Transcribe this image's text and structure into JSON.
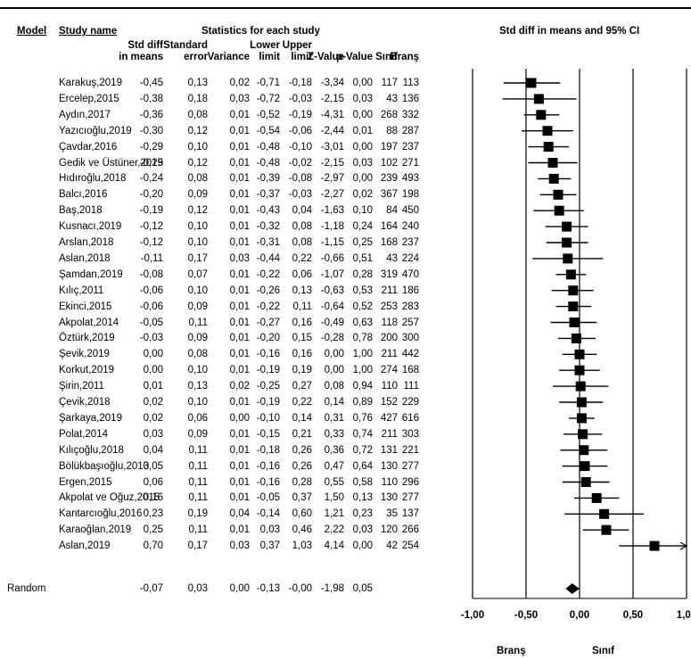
{
  "header": {
    "model": "Model",
    "study_name": "Study name",
    "stats_title": "Statistics for each study",
    "plot_title": "Std diff in means and 95% CI",
    "columns": [
      [
        "Std diff",
        "in means"
      ],
      [
        "Standard",
        "error"
      ],
      [
        "",
        "Variance"
      ],
      [
        "Lower",
        "limit"
      ],
      [
        "Upper",
        "limit"
      ],
      [
        "",
        "Z-Value"
      ],
      [
        "",
        "p-Value"
      ],
      [
        "",
        "Sınıf"
      ],
      [
        "",
        "Branş"
      ]
    ]
  },
  "rows": [
    [
      "Karakuş,2019",
      "-0,45",
      "0,13",
      "0,02",
      "-0,71",
      "-0,18",
      "-3,34",
      "0,00",
      "117",
      "113"
    ],
    [
      "Ercelep,2015",
      "-0,38",
      "0,18",
      "0,03",
      "-0,72",
      "-0,03",
      "-2,15",
      "0,03",
      "43",
      "136"
    ],
    [
      "Aydın,2017",
      "-0,36",
      "0,08",
      "0,01",
      "-0,52",
      "-0,19",
      "-4,31",
      "0,00",
      "268",
      "332"
    ],
    [
      "Yazıcıoğlu,2019",
      "-0,30",
      "0,12",
      "0,01",
      "-0,54",
      "-0,06",
      "-2,44",
      "0,01",
      "88",
      "287"
    ],
    [
      "Çavdar,2016",
      "-0,29",
      "0,10",
      "0,01",
      "-0,48",
      "-0,10",
      "-3,01",
      "0,00",
      "197",
      "237"
    ],
    [
      "Gedik ve Üstüner,2019",
      "-0,25",
      "0,12",
      "0,01",
      "-0,48",
      "-0,02",
      "-2,15",
      "0,03",
      "102",
      "271"
    ],
    [
      "Hıdıroğlu,2018",
      "-0,24",
      "0,08",
      "0,01",
      "-0,39",
      "-0,08",
      "-2,97",
      "0,00",
      "239",
      "493"
    ],
    [
      "Balcı,2016",
      "-0,20",
      "0,09",
      "0,01",
      "-0,37",
      "-0,03",
      "-2,27",
      "0,02",
      "367",
      "198"
    ],
    [
      "Baş,2018",
      "-0,19",
      "0,12",
      "0,01",
      "-0,43",
      "0,04",
      "-1,63",
      "0,10",
      "84",
      "450"
    ],
    [
      "Kusnacı,2019",
      "-0,12",
      "0,10",
      "0,01",
      "-0,32",
      "0,08",
      "-1,18",
      "0,24",
      "164",
      "240"
    ],
    [
      "Arslan,2018",
      "-0,12",
      "0,10",
      "0,01",
      "-0,31",
      "0,08",
      "-1,15",
      "0,25",
      "168",
      "237"
    ],
    [
      "Aslan,2018",
      "-0,11",
      "0,17",
      "0,03",
      "-0,44",
      "0,22",
      "-0,66",
      "0,51",
      "43",
      "224"
    ],
    [
      "Şamdan,2019",
      "-0,08",
      "0,07",
      "0,01",
      "-0,22",
      "0,06",
      "-1,07",
      "0,28",
      "319",
      "470"
    ],
    [
      "Kılıç,2011",
      "-0,06",
      "0,10",
      "0,01",
      "-0,26",
      "0,13",
      "-0,63",
      "0,53",
      "211",
      "186"
    ],
    [
      "Ekinci,2015",
      "-0,06",
      "0,09",
      "0,01",
      "-0,22",
      "0,11",
      "-0,64",
      "0,52",
      "253",
      "283"
    ],
    [
      "Akpolat,2014",
      "-0,05",
      "0,11",
      "0,01",
      "-0,27",
      "0,16",
      "-0,49",
      "0,63",
      "118",
      "257"
    ],
    [
      "Öztürk,2019",
      "-0,03",
      "0,09",
      "0,01",
      "-0,20",
      "0,15",
      "-0,28",
      "0,78",
      "200",
      "300"
    ],
    [
      "Şevik,2019",
      "0,00",
      "0,08",
      "0,01",
      "-0,16",
      "0,16",
      "0,00",
      "1,00",
      "211",
      "442"
    ],
    [
      "Korkut,2019",
      "0,00",
      "0,10",
      "0,01",
      "-0,19",
      "0,19",
      "0,00",
      "1,00",
      "274",
      "168"
    ],
    [
      "Şirin,2011",
      "0,01",
      "0,13",
      "0,02",
      "-0,25",
      "0,27",
      "0,08",
      "0,94",
      "110",
      "111"
    ],
    [
      "Çevik,2018",
      "0,02",
      "0,10",
      "0,01",
      "-0,19",
      "0,22",
      "0,14",
      "0,89",
      "152",
      "229"
    ],
    [
      "Şarkaya,2019",
      "0,02",
      "0,06",
      "0,00",
      "-0,10",
      "0,14",
      "0,31",
      "0,76",
      "427",
      "616"
    ],
    [
      "Polat,2014",
      "0,03",
      "0,09",
      "0,01",
      "-0,15",
      "0,21",
      "0,33",
      "0,74",
      "211",
      "303"
    ],
    [
      "Kılıçoğlu,2018",
      "0,04",
      "0,11",
      "0,01",
      "-0,18",
      "0,26",
      "0,36",
      "0,72",
      "131",
      "221"
    ],
    [
      "Bölükbaşıoğlu,2013",
      "0,05",
      "0,11",
      "0,01",
      "-0,16",
      "0,26",
      "0,47",
      "0,64",
      "130",
      "277"
    ],
    [
      "Ergen,2015",
      "0,06",
      "0,11",
      "0,01",
      "-0,16",
      "0,28",
      "0,55",
      "0,58",
      "110",
      "296"
    ],
    [
      "Akpolat ve Oğuz,2015",
      "0,16",
      "0,11",
      "0,01",
      "-0,05",
      "0,37",
      "1,50",
      "0,13",
      "130",
      "277"
    ],
    [
      "Kantarcıoğlu,2016",
      "0,23",
      "0,19",
      "0,04",
      "-0,14",
      "0,60",
      "1,21",
      "0,23",
      "35",
      "137"
    ],
    [
      "Karaoğlan,2019",
      "0,25",
      "0,11",
      "0,01",
      "0,03",
      "0,46",
      "2,22",
      "0,03",
      "120",
      "266"
    ],
    [
      "Aslan,2019",
      "0,70",
      "0,17",
      "0,03",
      "0,37",
      "1,03",
      "4,14",
      "0,00",
      "42",
      "254"
    ]
  ],
  "summary": {
    "model": "Random",
    "values": [
      "-0,07",
      "0,03",
      "0,00",
      "-0,13",
      "-0,00",
      "-1,98",
      "0,05"
    ]
  },
  "chart_data": {
    "type": "forest",
    "xlim": [
      -1,
      1
    ],
    "ticks": [
      -1,
      -0.5,
      0,
      0.5,
      1
    ],
    "tick_labels": [
      "-1,00",
      "-0,50",
      "0,00",
      "0,50",
      "1,00"
    ],
    "left_label": "Branş",
    "right_label": "Sınıf",
    "studies": [
      {
        "est": -0.45,
        "lo": -0.71,
        "hi": -0.18
      },
      {
        "est": -0.38,
        "lo": -0.72,
        "hi": -0.03
      },
      {
        "est": -0.36,
        "lo": -0.52,
        "hi": -0.19
      },
      {
        "est": -0.3,
        "lo": -0.54,
        "hi": -0.06
      },
      {
        "est": -0.29,
        "lo": -0.48,
        "hi": -0.1
      },
      {
        "est": -0.25,
        "lo": -0.48,
        "hi": -0.02
      },
      {
        "est": -0.24,
        "lo": -0.39,
        "hi": -0.08
      },
      {
        "est": -0.2,
        "lo": -0.37,
        "hi": -0.03
      },
      {
        "est": -0.19,
        "lo": -0.43,
        "hi": 0.04
      },
      {
        "est": -0.12,
        "lo": -0.32,
        "hi": 0.08
      },
      {
        "est": -0.12,
        "lo": -0.31,
        "hi": 0.08
      },
      {
        "est": -0.11,
        "lo": -0.44,
        "hi": 0.22
      },
      {
        "est": -0.08,
        "lo": -0.22,
        "hi": 0.06
      },
      {
        "est": -0.06,
        "lo": -0.26,
        "hi": 0.13
      },
      {
        "est": -0.06,
        "lo": -0.22,
        "hi": 0.11
      },
      {
        "est": -0.05,
        "lo": -0.27,
        "hi": 0.16
      },
      {
        "est": -0.03,
        "lo": -0.2,
        "hi": 0.15
      },
      {
        "est": 0.0,
        "lo": -0.16,
        "hi": 0.16
      },
      {
        "est": 0.0,
        "lo": -0.19,
        "hi": 0.19
      },
      {
        "est": 0.01,
        "lo": -0.25,
        "hi": 0.27
      },
      {
        "est": 0.02,
        "lo": -0.19,
        "hi": 0.22
      },
      {
        "est": 0.02,
        "lo": -0.1,
        "hi": 0.14
      },
      {
        "est": 0.03,
        "lo": -0.15,
        "hi": 0.21
      },
      {
        "est": 0.04,
        "lo": -0.18,
        "hi": 0.26
      },
      {
        "est": 0.05,
        "lo": -0.16,
        "hi": 0.26
      },
      {
        "est": 0.06,
        "lo": -0.16,
        "hi": 0.28
      },
      {
        "est": 0.16,
        "lo": -0.05,
        "hi": 0.37
      },
      {
        "est": 0.23,
        "lo": -0.14,
        "hi": 0.6
      },
      {
        "est": 0.25,
        "lo": 0.03,
        "hi": 0.46
      },
      {
        "est": 0.7,
        "lo": 0.37,
        "hi": 1.03
      }
    ],
    "summary": {
      "est": -0.07,
      "lo": -0.13,
      "hi": 0.0
    }
  }
}
